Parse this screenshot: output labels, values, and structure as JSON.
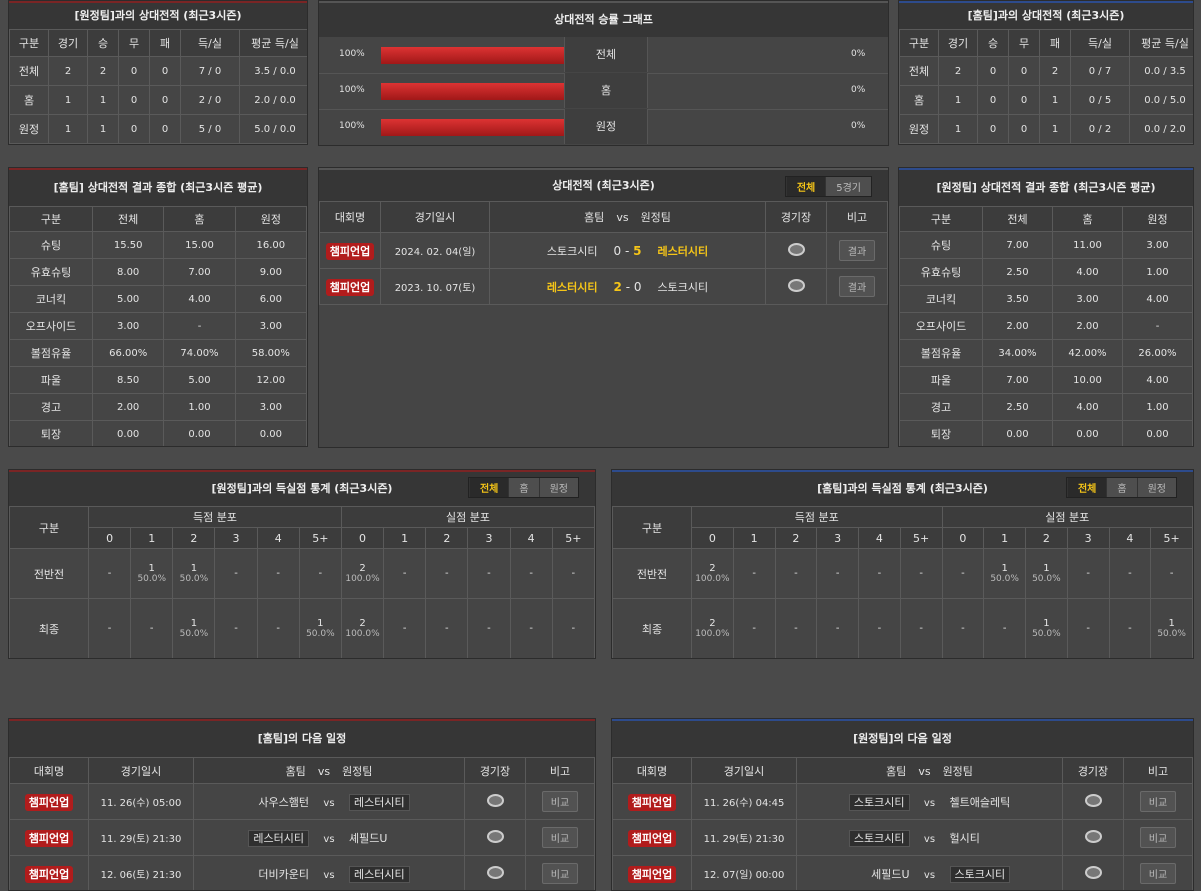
{
  "h2h_away": {
    "title": "[원정팀]과의 상대전적 (최근3시즌)",
    "headers": [
      "구분",
      "경기",
      "승",
      "무",
      "패",
      "득/실",
      "평균 득/실"
    ],
    "rows": [
      [
        "전체",
        "2",
        "2",
        "0",
        "0",
        "7 / 0",
        "3.5 / 0.0"
      ],
      [
        "홈",
        "1",
        "1",
        "0",
        "0",
        "2 / 0",
        "2.0 / 0.0"
      ],
      [
        "원정",
        "1",
        "1",
        "0",
        "0",
        "5 / 0",
        "5.0 / 0.0"
      ]
    ]
  },
  "graph": {
    "title": "상대전적 승률 그래프",
    "rows": [
      {
        "left": {
          "value": 100,
          "label": "100%"
        },
        "label": "전체",
        "right": {
          "value": 0,
          "label": "0%"
        }
      },
      {
        "left": {
          "value": 100,
          "label": "100%"
        },
        "label": "홈",
        "right": {
          "value": 0,
          "label": "0%"
        }
      },
      {
        "left": {
          "value": 100,
          "label": "100%"
        },
        "label": "원정",
        "right": {
          "value": 0,
          "label": "0%"
        }
      }
    ]
  },
  "h2h_home": {
    "title": "[홈팀]과의 상대전적 (최근3시즌)",
    "headers": [
      "구분",
      "경기",
      "승",
      "무",
      "패",
      "득/실",
      "평균 득/실"
    ],
    "rows": [
      [
        "전체",
        "2",
        "0",
        "0",
        "2",
        "0 / 7",
        "0.0 / 3.5"
      ],
      [
        "홈",
        "1",
        "0",
        "0",
        "1",
        "0 / 5",
        "0.0 / 5.0"
      ],
      [
        "원정",
        "1",
        "0",
        "0",
        "1",
        "0 / 2",
        "0.0 / 2.0"
      ]
    ]
  },
  "home_summary": {
    "title": "[홈팀] 상대전적 결과 종합 (최근3시즌 평균)",
    "headers": [
      "구분",
      "전체",
      "홈",
      "원정"
    ],
    "rows": [
      [
        "슈팅",
        "15.50",
        "15.00",
        "16.00"
      ],
      [
        "유효슈팅",
        "8.00",
        "7.00",
        "9.00"
      ],
      [
        "코너킥",
        "5.00",
        "4.00",
        "6.00"
      ],
      [
        "오프사이드",
        "3.00",
        "-",
        "3.00"
      ],
      [
        "볼점유율",
        "66.00%",
        "74.00%",
        "58.00%"
      ],
      [
        "파울",
        "8.50",
        "5.00",
        "12.00"
      ],
      [
        "경고",
        "2.00",
        "1.00",
        "3.00"
      ],
      [
        "퇴장",
        "0.00",
        "0.00",
        "0.00"
      ]
    ]
  },
  "recent": {
    "title": "상대전적 (최근3시즌)",
    "tabs": [
      "전체",
      "5경기"
    ],
    "headers": [
      "대회명",
      "경기일시",
      "홈팀",
      "vs",
      "원정팀",
      "경기장",
      "비고"
    ],
    "matches": [
      {
        "league": "챔피언업",
        "date": "2024. 02. 04(일)",
        "home": "스토크시티",
        "home_score": "0",
        "away_score": "5",
        "away": "레스터시티",
        "button": "결과"
      },
      {
        "league": "챔피언업",
        "date": "2023. 10. 07(토)",
        "home": "레스터시티",
        "home_score": "2",
        "away_score": "0",
        "away": "스토크시티",
        "button": "결과"
      }
    ]
  },
  "away_summary": {
    "title": "[원정팀] 상대전적 결과 종합 (최근3시즌 평균)",
    "headers": [
      "구분",
      "전체",
      "홈",
      "원정"
    ],
    "rows": [
      [
        "슈팅",
        "7.00",
        "11.00",
        "3.00"
      ],
      [
        "유효슈팅",
        "2.50",
        "4.00",
        "1.00"
      ],
      [
        "코너킥",
        "3.50",
        "3.00",
        "4.00"
      ],
      [
        "오프사이드",
        "2.00",
        "2.00",
        "-"
      ],
      [
        "볼점유율",
        "34.00%",
        "42.00%",
        "26.00%"
      ],
      [
        "파울",
        "7.00",
        "10.00",
        "4.00"
      ],
      [
        "경고",
        "2.50",
        "4.00",
        "1.00"
      ],
      [
        "퇴장",
        "0.00",
        "0.00",
        "0.00"
      ]
    ]
  },
  "goals_away": {
    "title": "[원정팀]과의 득실점 통계 (최근3시즌)",
    "tabs": [
      "전체",
      "홈",
      "원정"
    ],
    "label": "구분",
    "groups": [
      "득점 분포",
      "실점 분포"
    ],
    "columns": [
      "0",
      "1",
      "2",
      "3",
      "4",
      "5+"
    ],
    "rows": [
      {
        "name": "전반전",
        "scored": [
          "-",
          [
            "1",
            "50.0%"
          ],
          [
            "1",
            "50.0%"
          ],
          "-",
          "-",
          "-"
        ],
        "conceded": [
          [
            "2",
            "100.0%"
          ],
          "-",
          "-",
          "-",
          "-",
          "-"
        ]
      },
      {
        "name": "최종",
        "scored": [
          "-",
          "-",
          [
            "1",
            "50.0%"
          ],
          "-",
          "-",
          [
            "1",
            "50.0%"
          ]
        ],
        "conceded": [
          [
            "2",
            "100.0%"
          ],
          "-",
          "-",
          "-",
          "-",
          "-"
        ]
      }
    ]
  },
  "goals_home": {
    "title": "[홈팀]과의 득실점 통계 (최근3시즌)",
    "tabs": [
      "전체",
      "홈",
      "원정"
    ],
    "label": "구분",
    "groups": [
      "득점 분포",
      "실점 분포"
    ],
    "columns": [
      "0",
      "1",
      "2",
      "3",
      "4",
      "5+"
    ],
    "rows": [
      {
        "name": "전반전",
        "scored": [
          [
            "2",
            "100.0%"
          ],
          "-",
          "-",
          "-",
          "-",
          "-"
        ],
        "conceded": [
          "-",
          [
            "1",
            "50.0%"
          ],
          [
            "1",
            "50.0%"
          ],
          "-",
          "-",
          "-"
        ]
      },
      {
        "name": "최종",
        "scored": [
          [
            "2",
            "100.0%"
          ],
          "-",
          "-",
          "-",
          "-",
          "-"
        ],
        "conceded": [
          "-",
          "-",
          [
            "1",
            "50.0%"
          ],
          "-",
          "-",
          [
            "1",
            "50.0%"
          ]
        ]
      }
    ]
  },
  "next_home": {
    "title": "[홈팀]의 다음 일정",
    "headers": [
      "대회명",
      "경기일시",
      "홈팀",
      "vs",
      "원정팀",
      "경기장",
      "비고"
    ],
    "rows": [
      {
        "league": "챔피언업",
        "date": "11. 26(수) 05:00",
        "home": "사우스햄턴",
        "vs": "vs",
        "away": "레스터시티",
        "button": "비교"
      },
      {
        "league": "챔피언업",
        "date": "11. 29(토) 21:30",
        "home": "레스터시티",
        "vs": "vs",
        "away": "셰필드U",
        "button": "비교"
      },
      {
        "league": "챔피언업",
        "date": "12. 06(토) 21:30",
        "home": "더비카운티",
        "vs": "vs",
        "away": "레스터시티",
        "button": "비교"
      }
    ]
  },
  "next_away": {
    "title": "[원정팀]의 다음 일정",
    "headers": [
      "대회명",
      "경기일시",
      "홈팀",
      "vs",
      "원정팀",
      "경기장",
      "비고"
    ],
    "rows": [
      {
        "league": "챔피언업",
        "date": "11. 26(수) 04:45",
        "home": "스토크시티",
        "vs": "vs",
        "away": "첼트애슬레틱",
        "button": "비교"
      },
      {
        "league": "챔피언업",
        "date": "11. 29(토) 21:30",
        "home": "스토크시티",
        "vs": "vs",
        "away": "헐시티",
        "button": "비교"
      },
      {
        "league": "챔피언업",
        "date": "12. 07(일) 00:00",
        "home": "세필드U",
        "vs": "vs",
        "away": "스토크시티",
        "button": "비교"
      }
    ]
  }
}
